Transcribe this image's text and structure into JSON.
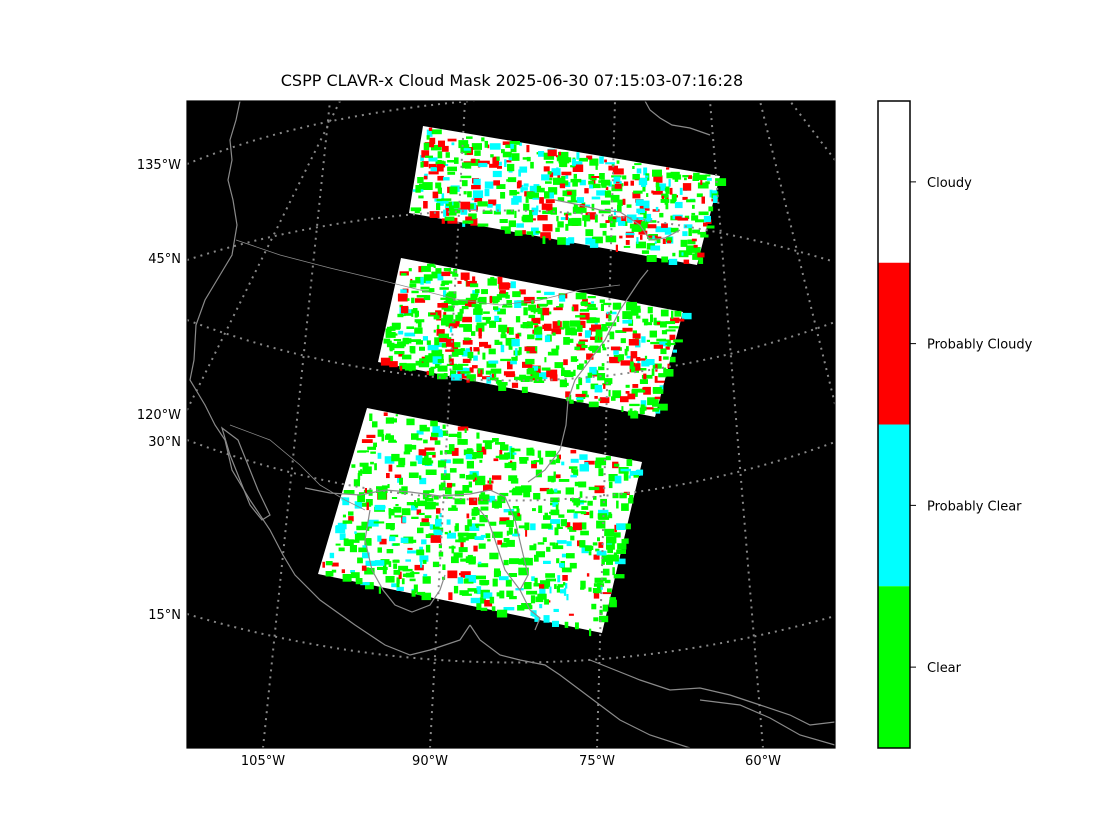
{
  "title": "CSPP CLAVR-x Cloud Mask 2025-06-30 07:15:03-07:16:28",
  "map": {
    "background_color": "#000000",
    "graticule_color": "#888888",
    "coastline_color": "#8a8a8a",
    "left_labels": [
      "135°W",
      "45°N",
      "120°W",
      "30°N",
      "15°N"
    ],
    "bottom_labels": [
      "105°W",
      "90°W",
      "75°W",
      "60°W"
    ]
  },
  "colorbar": {
    "categories": [
      {
        "label": "Cloudy",
        "color": "#ffffff"
      },
      {
        "label": "Probably Cloudy",
        "color": "#ff0000"
      },
      {
        "label": "Probably Clear",
        "color": "#00ffff"
      },
      {
        "label": "Clear",
        "color": "#00ff00"
      }
    ]
  },
  "swaths": [
    {
      "name": "swath-north",
      "dominant": "Cloudy"
    },
    {
      "name": "swath-middle",
      "dominant": "Cloudy"
    },
    {
      "name": "swath-south",
      "dominant": "Cloudy"
    }
  ]
}
